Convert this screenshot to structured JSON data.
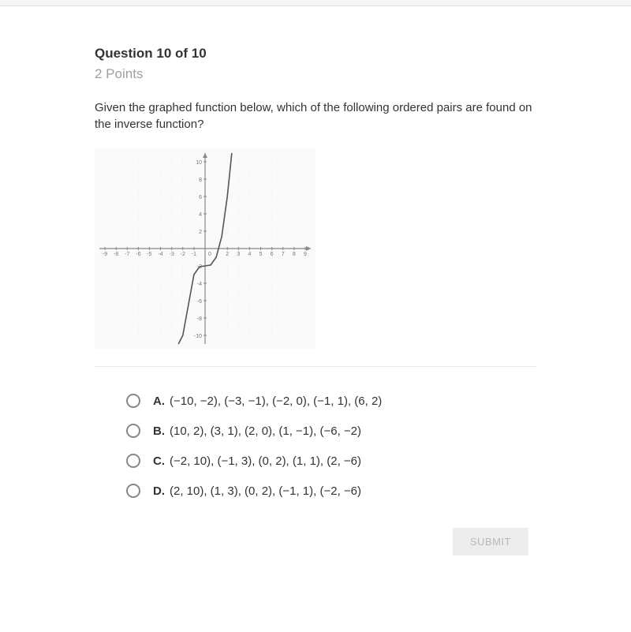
{
  "header": {
    "question_number": "Question 10 of 10",
    "points": "2 Points"
  },
  "prompt": "Given the graphed function below, which of the following ordered pairs are found on the inverse function?",
  "graph": {
    "type": "line",
    "background_color": "#fafafa",
    "axis_color": "#888888",
    "grid_color": "#e6e6e6",
    "grid_minor_color": "#f0f0f0",
    "curve_color": "#555555",
    "label_color": "#777777",
    "label_fontsize": 7,
    "xlim": [
      -9.5,
      9.5
    ],
    "ylim": [
      -11,
      11
    ],
    "x_ticks": [
      -9,
      -8,
      -7,
      -6,
      -5,
      -4,
      -3,
      -2,
      -1,
      0,
      2,
      3,
      4,
      5,
      6,
      7,
      8,
      9
    ],
    "y_ticks": [
      -10,
      -8,
      -6,
      -4,
      -2,
      0,
      2,
      4,
      6,
      8,
      10
    ],
    "curve_points": [
      {
        "x": -2.4,
        "y": -11
      },
      {
        "x": -2.0,
        "y": -10
      },
      {
        "x": -1.0,
        "y": -3
      },
      {
        "x": -0.5,
        "y": -2.1
      },
      {
        "x": 0.0,
        "y": -2
      },
      {
        "x": 0.5,
        "y": -1.9
      },
      {
        "x": 1.0,
        "y": -1
      },
      {
        "x": 1.5,
        "y": 1.4
      },
      {
        "x": 2.0,
        "y": 6
      },
      {
        "x": 2.4,
        "y": 11
      }
    ]
  },
  "choices": [
    {
      "letter": "A.",
      "text": "(−10, −2), (−3, −1), (−2, 0), (−1, 1), (6, 2)"
    },
    {
      "letter": "B.",
      "text": "(10, 2), (3, 1), (2, 0), (1, −1), (−6, −2)"
    },
    {
      "letter": "C.",
      "text": "(−2, 10), (−1, 3), (0, 2), (1, 1), (2, −6)"
    },
    {
      "letter": "D.",
      "text": "(2, 10), (1, 3), (0, 2), (−1, 1), (−2, −6)"
    }
  ],
  "submit_label": "SUBMIT"
}
